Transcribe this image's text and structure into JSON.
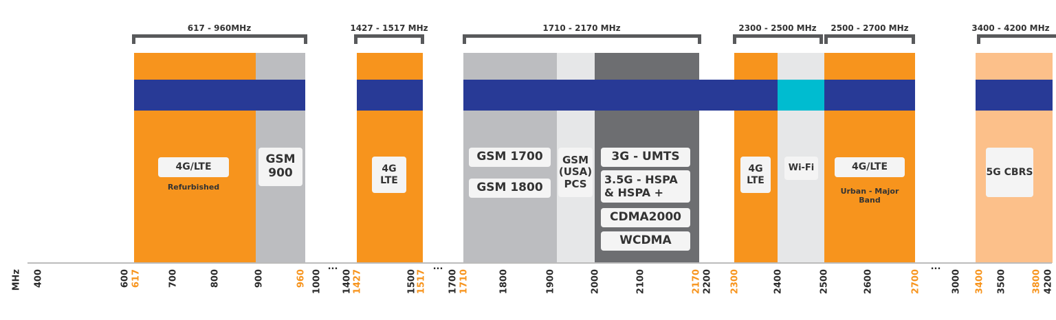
{
  "colors": {
    "orange": "#f7941d",
    "gray": "#bcbdc0",
    "light_gray": "#e6e7e8",
    "dark_gray": "#6d6e71",
    "blue": "#283a96",
    "cyan": "#00bcd0",
    "peach": "#fcc08a"
  },
  "brackets": [
    "617 - 960MHz",
    "1427 - 1517 MHz",
    "1710 - 2170 MHz",
    "2300 - 2500 MHz",
    "2500 - 2700 MHz",
    "3400 - 4200 MHz"
  ],
  "bands": {
    "lte_refurb": {
      "title": "4G/LTE",
      "sub": "Refurbished"
    },
    "gsm900": "GSM 900",
    "lte_1427": "4G LTE",
    "gsm1700": "GSM 1700",
    "gsm1800": "GSM 1800",
    "gsm_pcs": "GSM (USA) PCS",
    "umts": "3G - UMTS",
    "hspa": "3.5G - HSPA & HSPA +",
    "cdma": "CDMA2000",
    "wcdma": "WCDMA",
    "lte_2300": "4G LTE",
    "wifi": "Wi-Fi",
    "lte_urban": {
      "title": "4G/LTE",
      "sub": "Urban - Major Band"
    },
    "cbrs": "5G CBRS"
  },
  "axis": {
    "unit": "MHz",
    "break_marker": "...",
    "ticks": [
      {
        "v": "400",
        "hl": false
      },
      {
        "v": "600",
        "hl": false
      },
      {
        "v": "617",
        "hl": true
      },
      {
        "v": "700",
        "hl": false
      },
      {
        "v": "800",
        "hl": false
      },
      {
        "v": "900",
        "hl": false
      },
      {
        "v": "960",
        "hl": true
      },
      {
        "v": "1000",
        "hl": false
      },
      {
        "v": "1400",
        "hl": false
      },
      {
        "v": "1427",
        "hl": true
      },
      {
        "v": "1500",
        "hl": false
      },
      {
        "v": "1517",
        "hl": true
      },
      {
        "v": "1700",
        "hl": false
      },
      {
        "v": "1710",
        "hl": true
      },
      {
        "v": "1800",
        "hl": false
      },
      {
        "v": "1900",
        "hl": false
      },
      {
        "v": "2000",
        "hl": false
      },
      {
        "v": "2100",
        "hl": false
      },
      {
        "v": "2170",
        "hl": true
      },
      {
        "v": "2200",
        "hl": false
      },
      {
        "v": "2300",
        "hl": true
      },
      {
        "v": "2400",
        "hl": false
      },
      {
        "v": "2500",
        "hl": false
      },
      {
        "v": "2600",
        "hl": false
      },
      {
        "v": "2700",
        "hl": true
      },
      {
        "v": "3000",
        "hl": false
      },
      {
        "v": "3400",
        "hl": true
      },
      {
        "v": "3500",
        "hl": false
      },
      {
        "v": "3800",
        "hl": true
      },
      {
        "v": "4200",
        "hl": false
      }
    ]
  }
}
